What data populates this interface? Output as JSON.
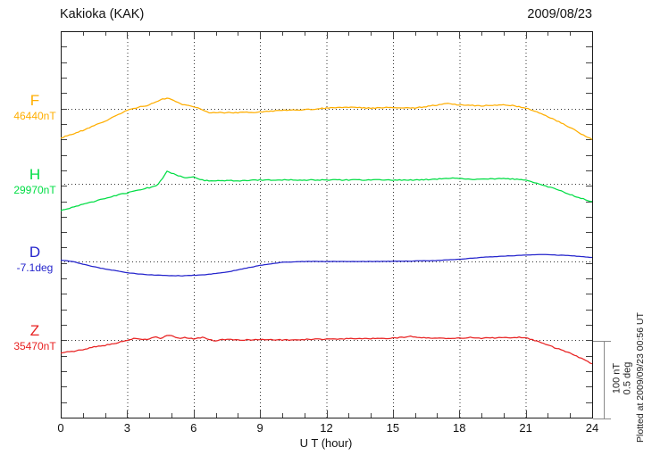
{
  "header": {
    "title": "Kakioka (KAK)",
    "date": "2009/08/23"
  },
  "footer": {
    "plotted_at": "Plotted at 2009/09/23 00:56 UT"
  },
  "chart_data": {
    "type": "line",
    "station": "Kakioka (KAK)",
    "date": "2009/08/23",
    "xlabel": "U T (hour)",
    "x_range": [
      0,
      24
    ],
    "x_ticks": [
      0,
      3,
      6,
      9,
      12,
      15,
      18,
      21,
      24
    ],
    "x_minor_step": 1,
    "grid_hours": [
      3,
      6,
      9,
      12,
      15,
      18,
      21
    ],
    "grid": "dotted vertical at 3h intervals, dotted horizontal baseline per channel",
    "scale_bar": {
      "nt": "100 nT",
      "deg": "0.5 deg"
    },
    "series": [
      {
        "name": "F",
        "unit": "nT",
        "reference": 46440,
        "reference_label": "46440nT",
        "color": "#FFAE00",
        "x": [
          0,
          0.5,
          1,
          1.5,
          2,
          2.5,
          3,
          3.5,
          4,
          4.5,
          4.8,
          5,
          5.5,
          6,
          6.3,
          6.7,
          7,
          8,
          9,
          10,
          11,
          12,
          13,
          14,
          15,
          16,
          17,
          17.5,
          18,
          19,
          20,
          20.5,
          21,
          21.5,
          22,
          22.5,
          23,
          23.5,
          24
        ],
        "offsets": [
          -38,
          -33,
          -28,
          -22,
          -16,
          -9,
          -2,
          2,
          5,
          12,
          14,
          12,
          6,
          3,
          0,
          -5,
          -5,
          -5,
          -4,
          -2,
          -1,
          1,
          2,
          1,
          2,
          1,
          5,
          7,
          5,
          4,
          5,
          4,
          1,
          -4,
          -10,
          -17,
          -24,
          -33,
          -40
        ]
      },
      {
        "name": "H",
        "unit": "nT",
        "reference": 29970,
        "reference_label": "29970nT",
        "color": "#00DD44",
        "x": [
          0,
          0.5,
          1,
          1.5,
          2,
          2.5,
          3,
          3.5,
          4,
          4.4,
          4.8,
          5.2,
          5.6,
          6,
          6.5,
          7,
          8,
          9,
          10,
          11,
          12,
          13,
          14,
          15,
          16,
          17,
          17.8,
          18.5,
          19,
          20,
          21,
          21.5,
          22,
          22.5,
          23,
          23.5,
          24
        ],
        "offsets": [
          -35,
          -31,
          -27,
          -23,
          -19,
          -15,
          -12,
          -8,
          -5,
          -1,
          16,
          12,
          8,
          9,
          4,
          4,
          4,
          5,
          5,
          5,
          5,
          5,
          5,
          5,
          5,
          6,
          8,
          6,
          6,
          7,
          5,
          1,
          -4,
          -8,
          -14,
          -19,
          -23
        ]
      },
      {
        "name": "D",
        "unit": "deg",
        "reference": -7.1,
        "reference_label": "-7.1deg",
        "color": "#2424CC",
        "x": [
          0,
          0.5,
          1,
          1.5,
          2,
          2.5,
          3,
          3.5,
          4,
          4.5,
          5,
          5.5,
          6,
          6.5,
          7,
          7.5,
          8,
          8.5,
          9,
          9.5,
          10,
          10.5,
          11,
          12,
          13,
          14,
          15,
          16,
          17,
          18,
          19,
          20,
          21,
          21.5,
          22,
          22.5,
          23,
          23.5,
          24
        ],
        "offsets": [
          0.009,
          0,
          -0.017,
          -0.035,
          -0.049,
          -0.061,
          -0.073,
          -0.081,
          -0.087,
          -0.09,
          -0.093,
          -0.093,
          -0.09,
          -0.087,
          -0.078,
          -0.07,
          -0.055,
          -0.04,
          -0.026,
          -0.015,
          -0.006,
          -0.003,
          0,
          0,
          -0.001,
          0,
          0.001,
          0.003,
          0.006,
          0.015,
          0.026,
          0.035,
          0.041,
          0.044,
          0.044,
          0.041,
          0.038,
          0.032,
          0.026
        ]
      },
      {
        "name": "Z",
        "unit": "nT",
        "reference": 35470,
        "reference_label": "35470nT",
        "color": "#E82222",
        "x": [
          0,
          0.5,
          1,
          1.5,
          2,
          2.5,
          3,
          3.3,
          3.6,
          4,
          4.3,
          4.5,
          4.8,
          5,
          5.3,
          5.6,
          6,
          6.4,
          6.7,
          7,
          7.3,
          8,
          9,
          10,
          11,
          12,
          13,
          14,
          15,
          15.8,
          16.5,
          17,
          18,
          18.5,
          19,
          20,
          20.8,
          21.2,
          21.6,
          22,
          22.5,
          23,
          23.5,
          24
        ],
        "offsets": [
          -17,
          -15,
          -13,
          -9,
          -7,
          -4,
          -0.6,
          1.7,
          0.6,
          1.2,
          4,
          1.7,
          6.4,
          5.2,
          2.3,
          2.9,
          1.7,
          3.5,
          0.6,
          -1.7,
          0.6,
          0,
          0.6,
          0,
          0.6,
          1.2,
          1.7,
          1.7,
          2.3,
          4.7,
          2.9,
          2.3,
          2.3,
          3.5,
          2.3,
          2.9,
          3.5,
          1.2,
          -2.3,
          -7,
          -12,
          -17.4,
          -24,
          -31
        ]
      }
    ],
    "colors": {
      "frame": "#1a1a1a",
      "ticks": "#444444",
      "dotted": "#333333",
      "scale_bar": "#8a8a8a"
    }
  }
}
